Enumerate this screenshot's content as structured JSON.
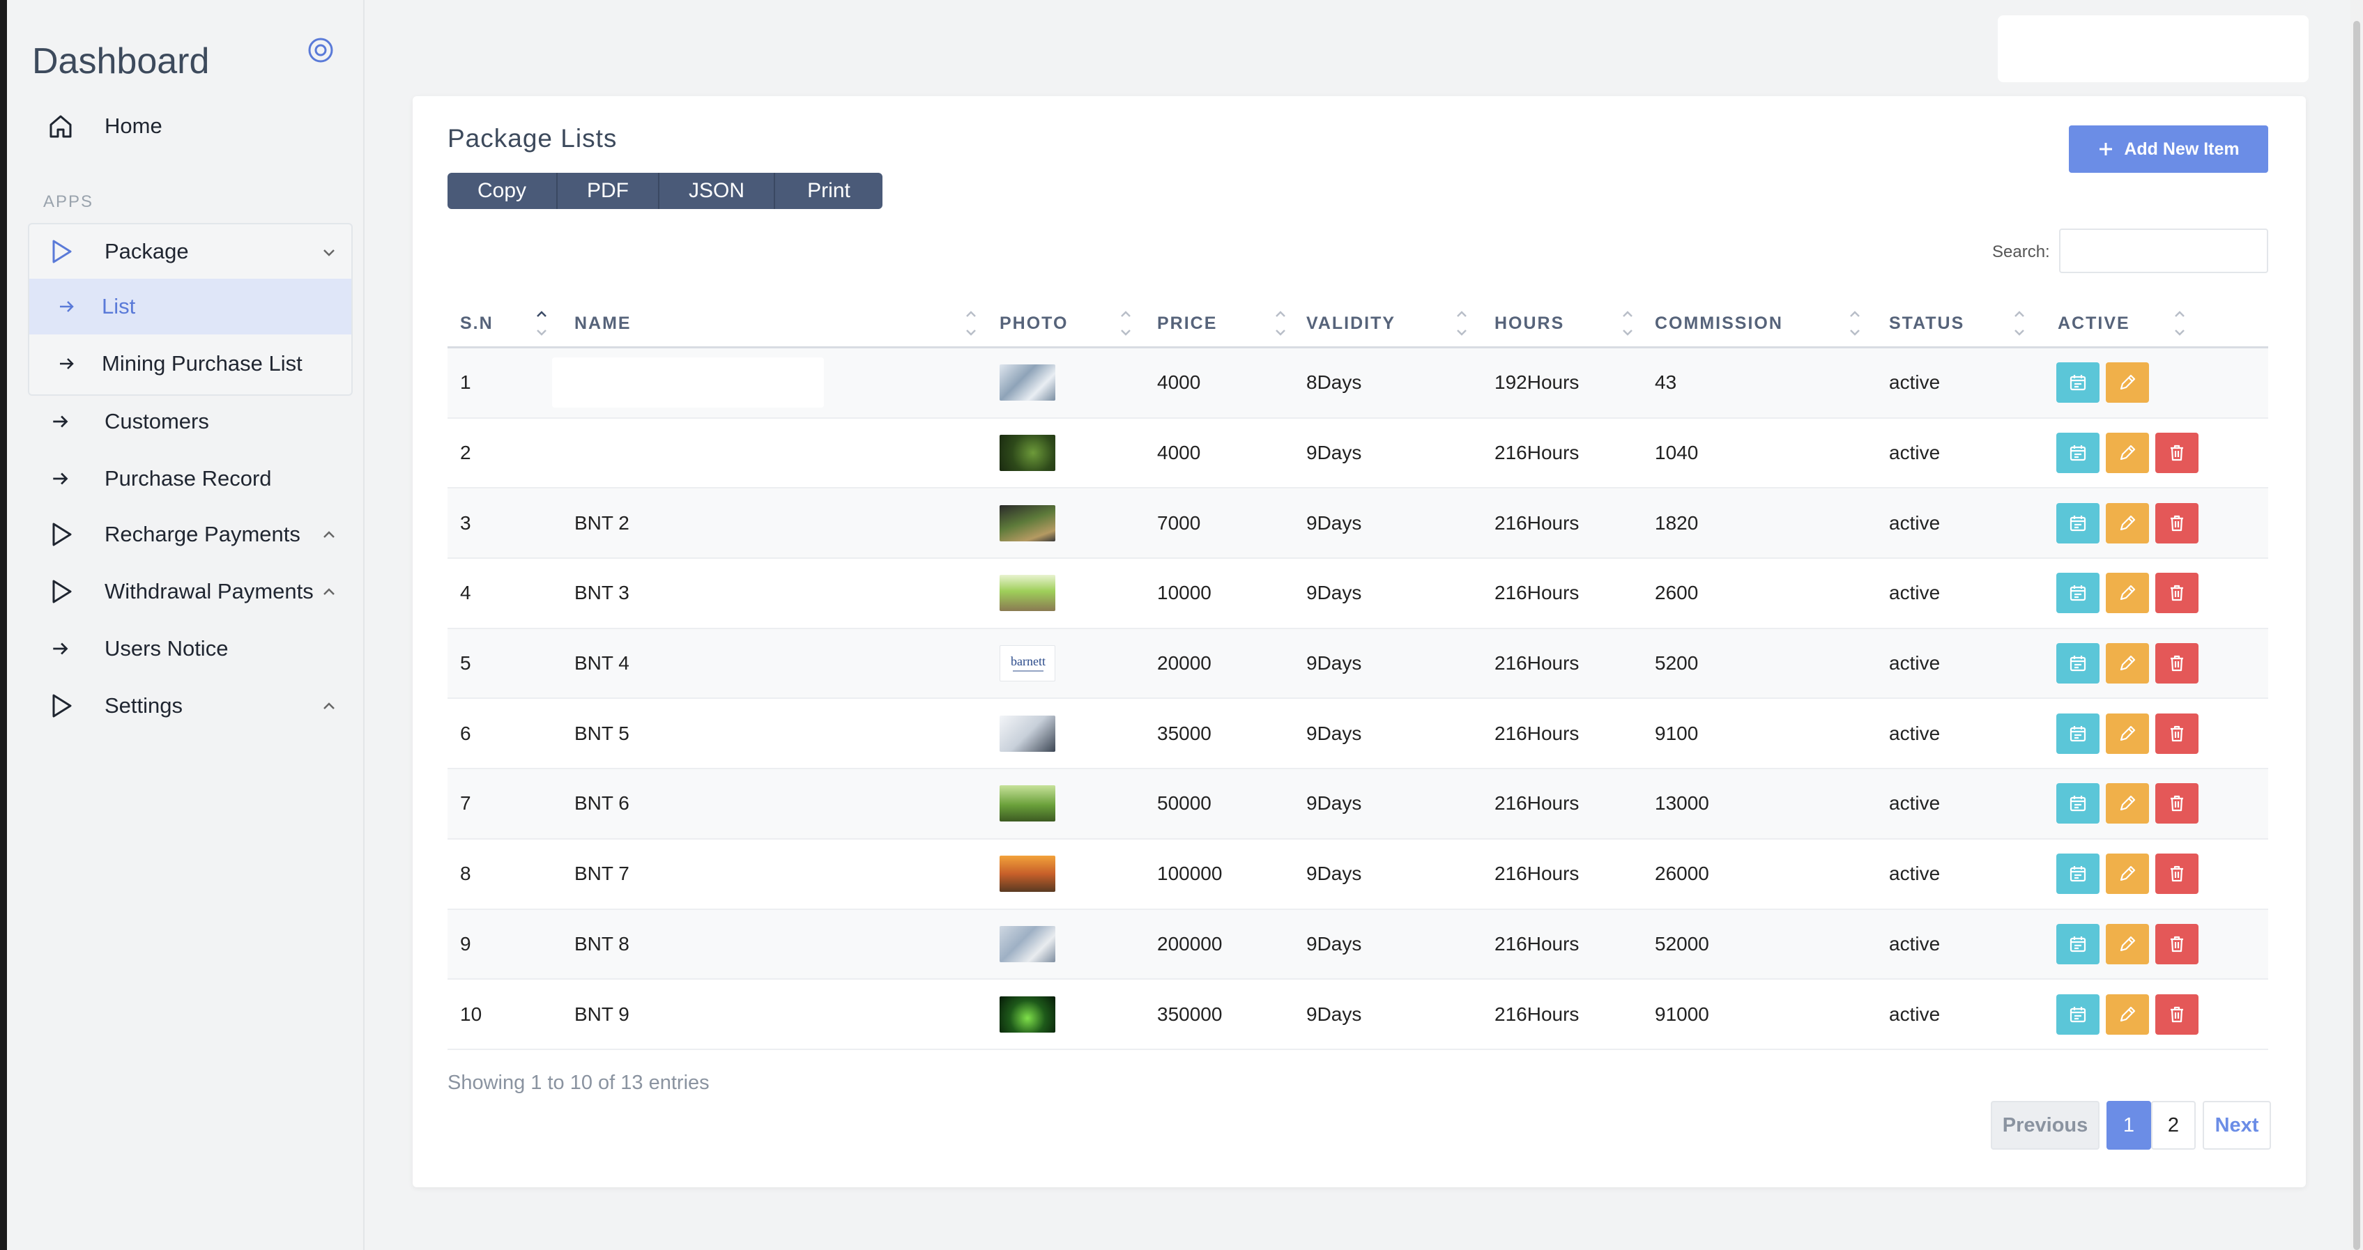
{
  "sidebar": {
    "brand": "Dashboard",
    "section_label": "APPS",
    "home": "Home",
    "package": "Package",
    "package_sub": [
      "List",
      "Mining Purchase List"
    ],
    "customers": "Customers",
    "purchase_record": "Purchase Record",
    "recharge": "Recharge Payments",
    "withdrawal": "Withdrawal Payments",
    "notice": "Users Notice",
    "settings": "Settings"
  },
  "card": {
    "title": "Package Lists",
    "add_label": "Add New Item",
    "export_buttons": [
      "Copy",
      "PDF",
      "JSON",
      "Print"
    ],
    "search_label": "Search:"
  },
  "table": {
    "columns": [
      "S.N",
      "NAME",
      "PHOTO",
      "PRICE",
      "VALIDITY",
      "HOURS",
      "COMMISSION",
      "STATUS",
      "ACTIVE"
    ],
    "rows": [
      {
        "sn": "1",
        "name": "",
        "price": "4000",
        "validity": "8Days",
        "hours": "192Hours",
        "commission": "43",
        "status": "active",
        "photo": "laptop-photo"
      },
      {
        "sn": "2",
        "name": "",
        "price": "4000",
        "validity": "9Days",
        "hours": "216Hours",
        "commission": "1040",
        "status": "active",
        "photo": "plant-photo"
      },
      {
        "sn": "3",
        "name": "BNT 2",
        "price": "7000",
        "validity": "9Days",
        "hours": "216Hours",
        "commission": "1820",
        "status": "active",
        "photo": "coins-plant-photo"
      },
      {
        "sn": "4",
        "name": "BNT 3",
        "price": "10000",
        "validity": "9Days",
        "hours": "216Hours",
        "commission": "2600",
        "status": "active",
        "photo": "growth-coins-photo"
      },
      {
        "sn": "5",
        "name": "BNT 4",
        "price": "20000",
        "validity": "9Days",
        "hours": "216Hours",
        "commission": "5200",
        "status": "active",
        "photo": "barnett-logo"
      },
      {
        "sn": "6",
        "name": "BNT 5",
        "price": "35000",
        "validity": "9Days",
        "hours": "216Hours",
        "commission": "9100",
        "status": "active",
        "photo": "chart-photo"
      },
      {
        "sn": "7",
        "name": "BNT 6",
        "price": "50000",
        "validity": "9Days",
        "hours": "216Hours",
        "commission": "13000",
        "status": "active",
        "photo": "green-plant-photo"
      },
      {
        "sn": "8",
        "name": "BNT 7",
        "price": "100000",
        "validity": "9Days",
        "hours": "216Hours",
        "commission": "26000",
        "status": "active",
        "photo": "house-coins-photo"
      },
      {
        "sn": "9",
        "name": "BNT 8",
        "price": "200000",
        "validity": "9Days",
        "hours": "216Hours",
        "commission": "52000",
        "status": "active",
        "photo": "money-photo"
      },
      {
        "sn": "10",
        "name": "BNT 9",
        "price": "350000",
        "validity": "9Days",
        "hours": "216Hours",
        "commission": "91000",
        "status": "active",
        "photo": "night-plant-photo"
      }
    ]
  },
  "footer": {
    "info": "Showing 1 to 10 of 13 entries",
    "prev": "Previous",
    "pages": [
      "1",
      "2"
    ],
    "next": "Next"
  },
  "colors": {
    "accent": "#6b8de6",
    "calendar_btn": "#5bc6d8",
    "edit_btn": "#f0b04a",
    "delete_btn": "#e45858",
    "export_btn": "#4a5a78"
  }
}
